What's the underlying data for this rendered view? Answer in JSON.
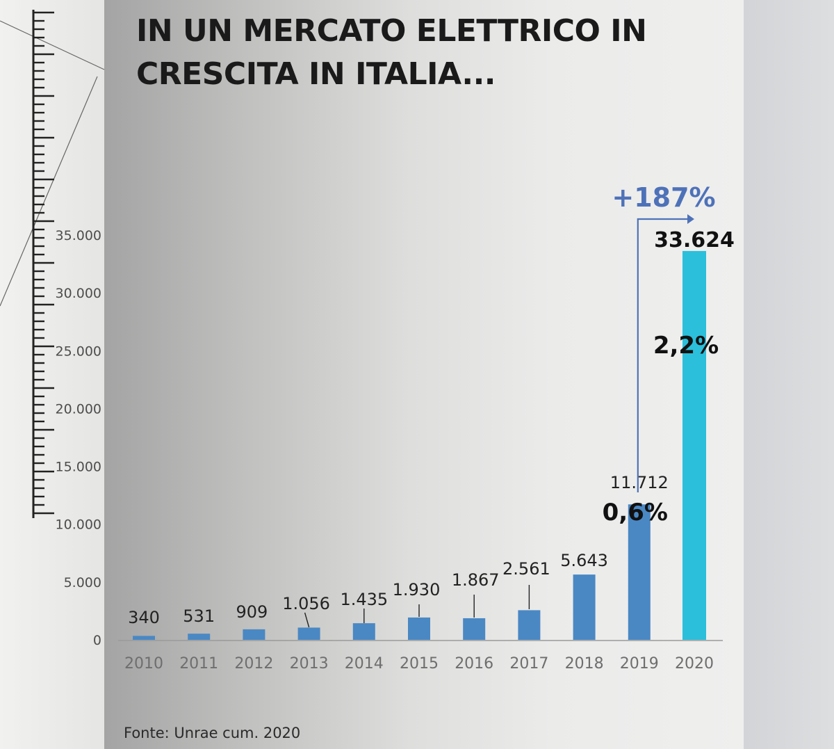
{
  "title": "IN UN MERCATO ELETTRICO IN CRESCITA IN ITALIA...",
  "source": "Fonte: Unrae cum. 2020",
  "colors": {
    "bar": "#4a88c4",
    "bar_highlight": "#2bbfdb",
    "arrow": "#4e72b8"
  },
  "chart_data": {
    "type": "bar",
    "categories": [
      "2010",
      "2011",
      "2012",
      "2013",
      "2014",
      "2015",
      "2016",
      "2017",
      "2018",
      "2019",
      "2020"
    ],
    "values": [
      340,
      531,
      909,
      1056,
      1435,
      1930,
      1867,
      2561,
      5643,
      11712,
      33624
    ],
    "value_labels": [
      "340",
      "531",
      "909",
      "1.056",
      "1.435",
      "1.930",
      "1.867",
      "2.561",
      "5.643",
      "11.712",
      "33.624"
    ],
    "ylim": [
      0,
      35000
    ],
    "yticks": [
      0,
      5000,
      10000,
      15000,
      20000,
      25000,
      30000,
      35000
    ],
    "ytick_labels": [
      "0",
      "5.000",
      "10.000",
      "15.000",
      "20.000",
      "25.000",
      "30.000",
      "35.000"
    ],
    "grid": false,
    "annotations": {
      "share_2019": "0,6%",
      "share_2020": "2,2%",
      "growth": "+187%"
    }
  }
}
